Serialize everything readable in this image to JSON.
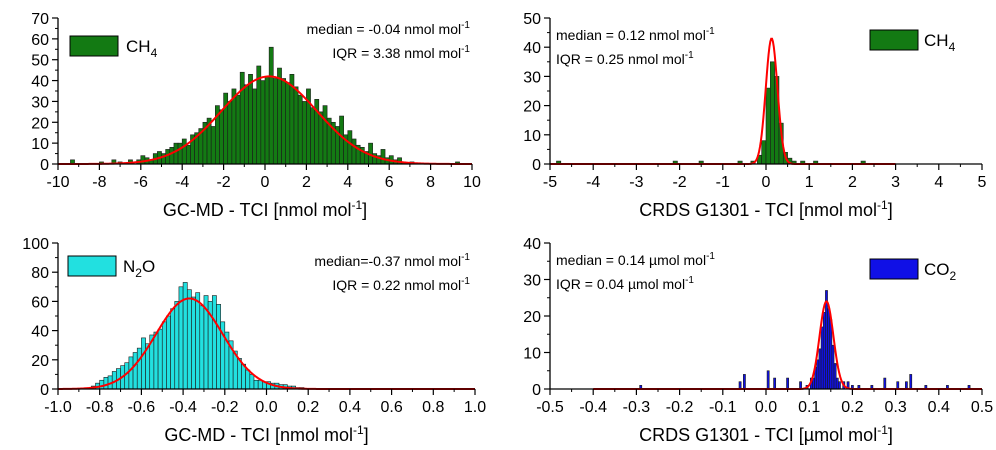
{
  "chart_data": [
    {
      "type": "bar",
      "id": "p1",
      "xlabel": "GC-MD - TCI [nmol mol",
      "xlabel_sup": "-1",
      "xlabel_end": "]",
      "xlim": [
        -10,
        10
      ],
      "ylim": [
        0,
        70
      ],
      "xticks": [
        -10,
        -8,
        -6,
        -4,
        -2,
        0,
        2,
        4,
        6,
        8,
        10
      ],
      "yticks": [
        0,
        10,
        20,
        30,
        40,
        50,
        60,
        70
      ],
      "bar_color": "#137a13",
      "bin_width": 0.2,
      "bars": [
        {
          "x": -9.3,
          "y": 2
        },
        {
          "x": -7.9,
          "y": 1
        },
        {
          "x": -7.3,
          "y": 2
        },
        {
          "x": -7.0,
          "y": 1
        },
        {
          "x": -6.5,
          "y": 2
        },
        {
          "x": -6.1,
          "y": 2
        },
        {
          "x": -5.9,
          "y": 4
        },
        {
          "x": -5.7,
          "y": 3
        },
        {
          "x": -5.5,
          "y": 2
        },
        {
          "x": -5.3,
          "y": 5
        },
        {
          "x": -5.1,
          "y": 6
        },
        {
          "x": -4.9,
          "y": 5
        },
        {
          "x": -4.7,
          "y": 7
        },
        {
          "x": -4.5,
          "y": 8
        },
        {
          "x": -4.3,
          "y": 10
        },
        {
          "x": -4.1,
          "y": 10
        },
        {
          "x": -3.9,
          "y": 12
        },
        {
          "x": -3.7,
          "y": 9
        },
        {
          "x": -3.5,
          "y": 14
        },
        {
          "x": -3.3,
          "y": 15
        },
        {
          "x": -3.1,
          "y": 17
        },
        {
          "x": -2.9,
          "y": 20
        },
        {
          "x": -2.7,
          "y": 22
        },
        {
          "x": -2.5,
          "y": 18
        },
        {
          "x": -2.3,
          "y": 28
        },
        {
          "x": -2.1,
          "y": 26
        },
        {
          "x": -1.9,
          "y": 34
        },
        {
          "x": -1.7,
          "y": 30
        },
        {
          "x": -1.5,
          "y": 36
        },
        {
          "x": -1.3,
          "y": 33
        },
        {
          "x": -1.1,
          "y": 44
        },
        {
          "x": -0.9,
          "y": 38
        },
        {
          "x": -0.7,
          "y": 43
        },
        {
          "x": -0.5,
          "y": 36
        },
        {
          "x": -0.3,
          "y": 47
        },
        {
          "x": -0.1,
          "y": 40
        },
        {
          "x": 0.1,
          "y": 42
        },
        {
          "x": 0.3,
          "y": 56
        },
        {
          "x": 0.5,
          "y": 41
        },
        {
          "x": 0.7,
          "y": 46
        },
        {
          "x": 0.9,
          "y": 41
        },
        {
          "x": 1.1,
          "y": 39
        },
        {
          "x": 1.3,
          "y": 43
        },
        {
          "x": 1.5,
          "y": 37
        },
        {
          "x": 1.7,
          "y": 33
        },
        {
          "x": 1.9,
          "y": 30
        },
        {
          "x": 2.1,
          "y": 36
        },
        {
          "x": 2.3,
          "y": 27
        },
        {
          "x": 2.5,
          "y": 31
        },
        {
          "x": 2.7,
          "y": 25
        },
        {
          "x": 2.9,
          "y": 28
        },
        {
          "x": 3.1,
          "y": 22
        },
        {
          "x": 3.3,
          "y": 20
        },
        {
          "x": 3.5,
          "y": 18
        },
        {
          "x": 3.7,
          "y": 23
        },
        {
          "x": 3.9,
          "y": 14
        },
        {
          "x": 4.1,
          "y": 16
        },
        {
          "x": 4.3,
          "y": 12
        },
        {
          "x": 4.5,
          "y": 9
        },
        {
          "x": 4.7,
          "y": 8
        },
        {
          "x": 4.9,
          "y": 6
        },
        {
          "x": 5.1,
          "y": 10
        },
        {
          "x": 5.3,
          "y": 5
        },
        {
          "x": 5.5,
          "y": 4
        },
        {
          "x": 5.7,
          "y": 7
        },
        {
          "x": 5.9,
          "y": 3
        },
        {
          "x": 6.1,
          "y": 4
        },
        {
          "x": 6.3,
          "y": 2
        },
        {
          "x": 6.5,
          "y": 3
        },
        {
          "x": 6.7,
          "y": 1
        },
        {
          "x": 7.1,
          "y": 1
        },
        {
          "x": 9.3,
          "y": 1
        }
      ],
      "fit": {
        "mu": 0.2,
        "sigma": 2.3,
        "amp": 42
      },
      "legend_label": "CH",
      "legend_sub": "4",
      "legend_pos": "top-left",
      "median_text": "median = -0.04 nmol mol",
      "iqr_text": "IQR = 3.38 nmol mol",
      "stat_sup": "-1"
    },
    {
      "type": "bar",
      "id": "p2",
      "xlabel": "CRDS G1301 - TCI [nmol mol",
      "xlabel_sup": "-1",
      "xlabel_end": "]",
      "xlim": [
        -5,
        5
      ],
      "ylim": [
        0,
        50
      ],
      "xticks": [
        -5,
        -4,
        -3,
        -2,
        -1,
        0,
        1,
        2,
        3,
        4,
        5
      ],
      "yticks": [
        0,
        10,
        20,
        30,
        40,
        50
      ],
      "bar_color": "#137a13",
      "bin_width": 0.1,
      "bars": [
        {
          "x": -4.8,
          "y": 1
        },
        {
          "x": -2.1,
          "y": 1
        },
        {
          "x": -1.5,
          "y": 1
        },
        {
          "x": -0.6,
          "y": 1
        },
        {
          "x": -0.3,
          "y": 1
        },
        {
          "x": -0.15,
          "y": 3
        },
        {
          "x": -0.05,
          "y": 8
        },
        {
          "x": 0.05,
          "y": 26
        },
        {
          "x": 0.15,
          "y": 35
        },
        {
          "x": 0.25,
          "y": 30
        },
        {
          "x": 0.35,
          "y": 14
        },
        {
          "x": 0.45,
          "y": 4
        },
        {
          "x": 0.55,
          "y": 2
        },
        {
          "x": 0.65,
          "y": 1
        },
        {
          "x": 0.85,
          "y": 1
        },
        {
          "x": 1.15,
          "y": 1
        },
        {
          "x": 2.25,
          "y": 1
        }
      ],
      "fit": {
        "mu": 0.13,
        "sigma": 0.135,
        "amp": 43,
        "xmin": -5,
        "xmax": 3
      },
      "legend_label": "CH",
      "legend_sub": "4",
      "legend_pos": "top-right",
      "median_text": "median = 0.12 nmol mol",
      "iqr_text": "IQR = 0.25 nmol mol",
      "stat_sup": "-1"
    },
    {
      "type": "bar",
      "id": "p3",
      "xlabel": "GC-MD - TCI [nmol mol",
      "xlabel_sup": "-1",
      "xlabel_end": "]",
      "xlim": [
        -1.0,
        1.0
      ],
      "ylim": [
        0,
        100
      ],
      "xticks": [
        -1.0,
        -0.8,
        -0.6,
        -0.4,
        -0.2,
        0.0,
        0.2,
        0.4,
        0.6,
        0.8,
        1.0
      ],
      "yticks": [
        0,
        20,
        40,
        60,
        80,
        100
      ],
      "bar_color": "#22e0e0",
      "bin_width": 0.02,
      "bars": [
        {
          "x": -0.83,
          "y": 2
        },
        {
          "x": -0.81,
          "y": 4
        },
        {
          "x": -0.79,
          "y": 6
        },
        {
          "x": -0.77,
          "y": 8
        },
        {
          "x": -0.75,
          "y": 9
        },
        {
          "x": -0.73,
          "y": 12
        },
        {
          "x": -0.71,
          "y": 14
        },
        {
          "x": -0.69,
          "y": 16
        },
        {
          "x": -0.67,
          "y": 18
        },
        {
          "x": -0.65,
          "y": 22
        },
        {
          "x": -0.63,
          "y": 25
        },
        {
          "x": -0.61,
          "y": 28
        },
        {
          "x": -0.59,
          "y": 35
        },
        {
          "x": -0.57,
          "y": 31
        },
        {
          "x": -0.55,
          "y": 37
        },
        {
          "x": -0.53,
          "y": 39
        },
        {
          "x": -0.51,
          "y": 41
        },
        {
          "x": -0.49,
          "y": 46
        },
        {
          "x": -0.47,
          "y": 50
        },
        {
          "x": -0.45,
          "y": 55
        },
        {
          "x": -0.43,
          "y": 60
        },
        {
          "x": -0.41,
          "y": 70
        },
        {
          "x": -0.39,
          "y": 73
        },
        {
          "x": -0.37,
          "y": 68
        },
        {
          "x": -0.35,
          "y": 63
        },
        {
          "x": -0.33,
          "y": 66
        },
        {
          "x": -0.31,
          "y": 57
        },
        {
          "x": -0.29,
          "y": 64
        },
        {
          "x": -0.27,
          "y": 60
        },
        {
          "x": -0.25,
          "y": 64
        },
        {
          "x": -0.23,
          "y": 58
        },
        {
          "x": -0.21,
          "y": 46
        },
        {
          "x": -0.19,
          "y": 39
        },
        {
          "x": -0.17,
          "y": 33
        },
        {
          "x": -0.15,
          "y": 26
        },
        {
          "x": -0.13,
          "y": 21
        },
        {
          "x": -0.11,
          "y": 17
        },
        {
          "x": -0.09,
          "y": 13
        },
        {
          "x": -0.07,
          "y": 10
        },
        {
          "x": -0.05,
          "y": 6
        },
        {
          "x": -0.03,
          "y": 6
        },
        {
          "x": -0.01,
          "y": 5
        },
        {
          "x": 0.01,
          "y": 5
        },
        {
          "x": 0.03,
          "y": 4
        },
        {
          "x": 0.05,
          "y": 4
        },
        {
          "x": 0.07,
          "y": 3
        },
        {
          "x": 0.09,
          "y": 3
        },
        {
          "x": 0.11,
          "y": 2
        },
        {
          "x": 0.13,
          "y": 2
        },
        {
          "x": 0.15,
          "y": 1
        },
        {
          "x": 0.17,
          "y": 1
        }
      ],
      "fit": {
        "mu": -0.37,
        "sigma": 0.16,
        "amp": 62
      },
      "legend_label": "N",
      "legend_sub": "2",
      "legend_tail": "O",
      "legend_pos": "top-left",
      "median_text": "median=-0.37 nmol mol",
      "iqr_text": "IQR = 0.22 nmol mol",
      "stat_sup": "-1"
    },
    {
      "type": "bar",
      "id": "p4",
      "xlabel": "CRDS G1301 - TCI [µmol mol",
      "xlabel_sup": "-1",
      "xlabel_end": "]",
      "xlim": [
        -0.5,
        0.5
      ],
      "ylim": [
        0,
        40
      ],
      "xticks": [
        -0.5,
        -0.4,
        -0.3,
        -0.2,
        -0.1,
        0.0,
        0.1,
        0.2,
        0.3,
        0.4,
        0.5
      ],
      "yticks": [
        0,
        10,
        20,
        30,
        40
      ],
      "bar_color": "#1010e6",
      "bin_width": 0.005,
      "bars": [
        {
          "x": -0.29,
          "y": 1
        },
        {
          "x": -0.06,
          "y": 2
        },
        {
          "x": -0.05,
          "y": 4
        },
        {
          "x": 0.005,
          "y": 5
        },
        {
          "x": 0.02,
          "y": 3
        },
        {
          "x": 0.05,
          "y": 3
        },
        {
          "x": 0.08,
          "y": 2
        },
        {
          "x": 0.095,
          "y": 1
        },
        {
          "x": 0.105,
          "y": 3
        },
        {
          "x": 0.11,
          "y": 3
        },
        {
          "x": 0.115,
          "y": 6
        },
        {
          "x": 0.12,
          "y": 8
        },
        {
          "x": 0.125,
          "y": 11
        },
        {
          "x": 0.13,
          "y": 17
        },
        {
          "x": 0.135,
          "y": 21
        },
        {
          "x": 0.14,
          "y": 27
        },
        {
          "x": 0.145,
          "y": 22
        },
        {
          "x": 0.15,
          "y": 19
        },
        {
          "x": 0.155,
          "y": 12
        },
        {
          "x": 0.16,
          "y": 7
        },
        {
          "x": 0.165,
          "y": 3
        },
        {
          "x": 0.17,
          "y": 2
        },
        {
          "x": 0.18,
          "y": 2
        },
        {
          "x": 0.19,
          "y": 2
        },
        {
          "x": 0.2,
          "y": 1
        },
        {
          "x": 0.215,
          "y": 1
        },
        {
          "x": 0.245,
          "y": 1
        },
        {
          "x": 0.275,
          "y": 3
        },
        {
          "x": 0.305,
          "y": 2
        },
        {
          "x": 0.325,
          "y": 2
        },
        {
          "x": 0.335,
          "y": 4
        },
        {
          "x": 0.37,
          "y": 1
        },
        {
          "x": 0.42,
          "y": 1
        },
        {
          "x": 0.47,
          "y": 1
        }
      ],
      "fit": {
        "mu": 0.14,
        "sigma": 0.016,
        "amp": 24,
        "xmin": -0.4,
        "xmax": 0.5
      },
      "legend_label": "CO",
      "legend_sub": "2",
      "legend_pos": "top-right",
      "median_text": "median = 0.14 µmol mol",
      "iqr_text": "IQR = 0.04 µmol mol",
      "stat_sup": "-1"
    }
  ],
  "colors": {
    "fit_line": "#ff0000",
    "axis": "#000000",
    "bar_edge": "#1a1a1a"
  }
}
